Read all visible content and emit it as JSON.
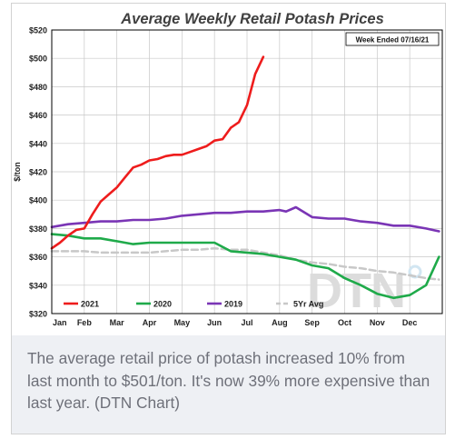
{
  "chart_data": {
    "type": "line",
    "title": "Average Weekly Retail Potash Prices",
    "annotation": "Week Ended 07/16/21",
    "ylabel": "$/ton",
    "xlabel": "",
    "ylim": [
      320,
      520
    ],
    "y_ticks": [
      "$320",
      "$340",
      "$360",
      "$380",
      "$400",
      "$420",
      "$440",
      "$460",
      "$480",
      "$500",
      "$520"
    ],
    "y_tick_values": [
      320,
      340,
      360,
      380,
      400,
      420,
      440,
      460,
      480,
      500,
      520
    ],
    "x_ticks": [
      "Jan",
      "Feb",
      "Mar",
      "Apr",
      "May",
      "Jun",
      "Jul",
      "Aug",
      "Sep",
      "Oct",
      "Nov",
      "Dec"
    ],
    "grid": true,
    "legend_position": "bottom-left",
    "watermark": "DTN",
    "series": [
      {
        "name": "2021",
        "color": "#ee1c1c",
        "dashed": false,
        "x": [
          0,
          0.25,
          0.5,
          0.75,
          1,
          1.25,
          1.5,
          1.75,
          2,
          2.25,
          2.5,
          2.75,
          3,
          3.25,
          3.5,
          3.75,
          4,
          4.25,
          4.5,
          4.75,
          5,
          5.25,
          5.5,
          5.75,
          6,
          6.25,
          6.5
        ],
        "y": [
          366,
          370,
          375,
          379,
          380,
          390,
          399,
          404,
          409,
          416,
          423,
          425,
          428,
          429,
          431,
          432,
          432,
          434,
          436,
          438,
          442,
          443,
          451,
          455,
          467,
          489,
          501
        ]
      },
      {
        "name": "2020",
        "color": "#1faa4a",
        "dashed": false,
        "x": [
          0,
          0.5,
          1,
          1.5,
          2,
          2.5,
          3,
          3.5,
          4,
          4.5,
          5,
          5.5,
          6,
          6.5,
          7,
          7.5,
          8,
          8.5,
          9,
          9.5,
          10,
          10.5,
          11,
          11.5,
          11.9
        ],
        "y": [
          376,
          375,
          373,
          373,
          371,
          369,
          370,
          370,
          370,
          370,
          370,
          364,
          363,
          362,
          360,
          358,
          354,
          352,
          345,
          340,
          334,
          331,
          333,
          340,
          360
        ]
      },
      {
        "name": "2019",
        "color": "#7a35b5",
        "dashed": false,
        "x": [
          0,
          0.5,
          1,
          1.5,
          2,
          2.5,
          3,
          3.5,
          4,
          4.5,
          5,
          5.5,
          6,
          6.5,
          7,
          7.2,
          7.5,
          8,
          8.5,
          9,
          9.5,
          10,
          10.5,
          11,
          11.5,
          11.9
        ],
        "y": [
          381,
          383,
          384,
          385,
          385,
          386,
          386,
          387,
          389,
          390,
          391,
          391,
          392,
          392,
          393,
          392,
          395,
          388,
          387,
          387,
          385,
          384,
          382,
          382,
          380,
          378
        ]
      },
      {
        "name": "5Yr Avg",
        "color": "#c8c8c8",
        "dashed": true,
        "x": [
          0,
          0.5,
          1,
          1.5,
          2,
          2.5,
          3,
          3.5,
          4,
          4.5,
          5,
          5.5,
          6,
          6.5,
          7,
          7.5,
          8,
          8.5,
          9,
          9.5,
          10,
          10.5,
          11,
          11.5,
          11.9
        ],
        "y": [
          364,
          364,
          364,
          363,
          363,
          363,
          363,
          364,
          365,
          365,
          366,
          365,
          365,
          363,
          361,
          358,
          356,
          355,
          353,
          352,
          350,
          349,
          347,
          345,
          344
        ]
      }
    ]
  },
  "caption": {
    "text": "The average retail price of potash increased 10% from last month to $501/ton. It's now 39% more expensive than last year. (DTN Chart)"
  }
}
